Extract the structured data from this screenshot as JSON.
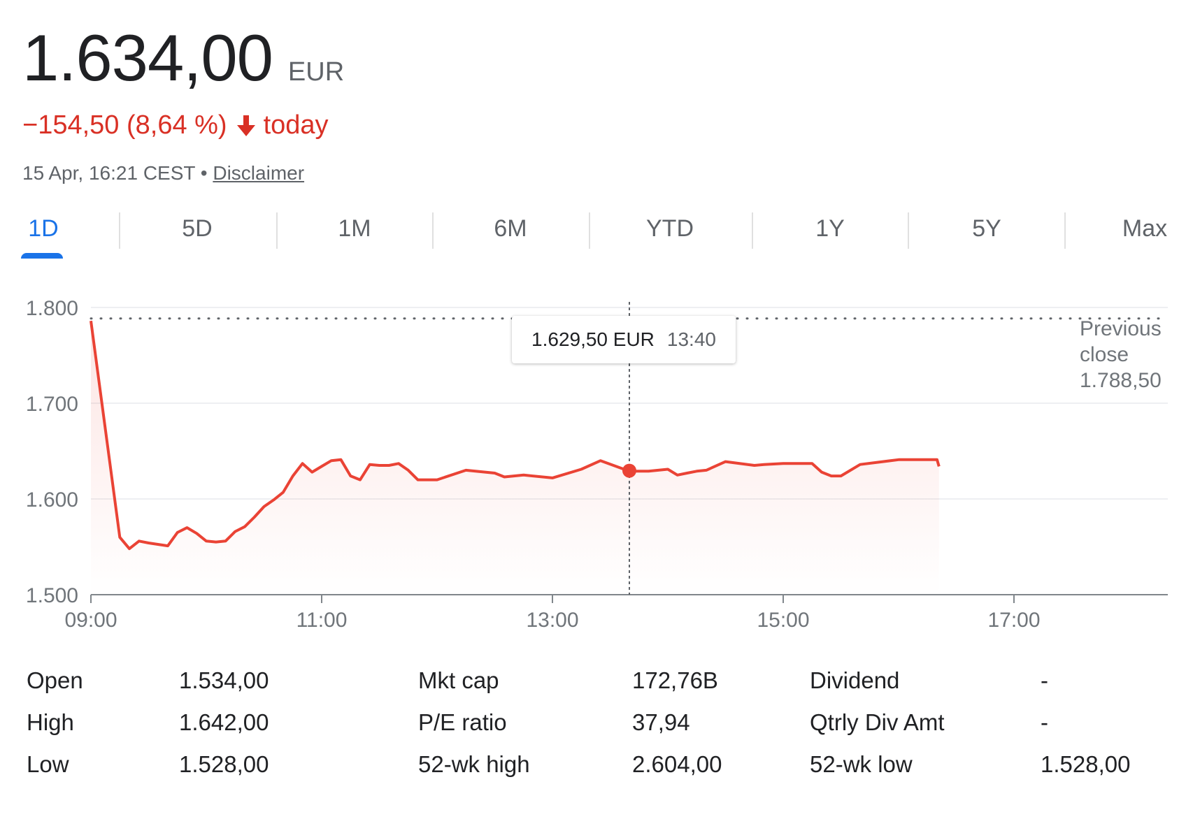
{
  "quote": {
    "price": "1.634,00",
    "currency": "EUR",
    "change": "−154,50 (8,64 %)",
    "change_period": "today",
    "timestamp": "15 Apr, 16:21 CEST •",
    "disclaimer": "Disclaimer",
    "colors": {
      "negative": "#d93025",
      "accent": "#1a73e8"
    }
  },
  "tabs": [
    {
      "label": "1D",
      "active": true
    },
    {
      "label": "5D",
      "active": false
    },
    {
      "label": "1M",
      "active": false
    },
    {
      "label": "6M",
      "active": false
    },
    {
      "label": "YTD",
      "active": false
    },
    {
      "label": "1Y",
      "active": false
    },
    {
      "label": "5Y",
      "active": false
    },
    {
      "label": "Max",
      "active": false
    }
  ],
  "tooltip": {
    "price": "1.629,50 EUR",
    "time": "13:40"
  },
  "previous_close": {
    "label1": "Previous",
    "label2": "close",
    "value": "1.788,50"
  },
  "chart_data": {
    "type": "line",
    "x_ticks": [
      "09:00",
      "11:00",
      "13:00",
      "15:00",
      "17:00"
    ],
    "y_ticks": [
      "1.500",
      "1.600",
      "1.700",
      "1.800"
    ],
    "xlim": [
      "09:00",
      "18:20"
    ],
    "ylim": [
      1500,
      1800
    ],
    "previous_close": 1788.5,
    "hover": {
      "x": "13:40",
      "y": 1629.5
    },
    "series": [
      {
        "color": "#ea4335",
        "x": [
          "09:00",
          "09:15",
          "09:20",
          "09:25",
          "09:30",
          "09:40",
          "09:45",
          "09:50",
          "09:55",
          "10:00",
          "10:05",
          "10:10",
          "10:15",
          "10:20",
          "10:25",
          "10:30",
          "10:35",
          "10:40",
          "10:45",
          "10:50",
          "10:55",
          "11:00",
          "11:05",
          "11:10",
          "11:15",
          "11:20",
          "11:25",
          "11:30",
          "11:35",
          "11:40",
          "11:45",
          "11:50",
          "12:00",
          "12:15",
          "12:30",
          "12:35",
          "12:45",
          "13:00",
          "13:15",
          "13:25",
          "13:40",
          "13:50",
          "14:00",
          "14:05",
          "14:10",
          "14:15",
          "14:20",
          "14:30",
          "14:45",
          "14:50",
          "15:00",
          "15:10",
          "15:15",
          "15:20",
          "15:25",
          "15:30",
          "15:40",
          "16:00",
          "16:05",
          "16:10",
          "16:20",
          "16:21"
        ],
        "y": [
          1786,
          1560,
          1548,
          1556,
          1554,
          1551,
          1565,
          1570,
          1564,
          1556,
          1555,
          1556,
          1566,
          1571,
          1581,
          1592,
          1599,
          1607,
          1624,
          1637,
          1628,
          1634,
          1640,
          1641,
          1624,
          1620,
          1636,
          1635,
          1635,
          1637,
          1630,
          1620,
          1620,
          1630,
          1627,
          1623,
          1625,
          1622,
          1631,
          1640,
          1629,
          1629,
          1631,
          1625,
          1627,
          1629,
          1630,
          1639,
          1635,
          1636,
          1637,
          1637,
          1637,
          1628,
          1624,
          1624,
          1636,
          1641,
          1641,
          1641,
          1641,
          1634
        ]
      }
    ]
  },
  "stats": [
    {
      "label": "Open",
      "value": "1.534,00"
    },
    {
      "label": "High",
      "value": "1.642,00"
    },
    {
      "label": "Low",
      "value": "1.528,00"
    },
    {
      "label": "Mkt cap",
      "value": "172,76B"
    },
    {
      "label": "P/E ratio",
      "value": "37,94"
    },
    {
      "label": "52-wk high",
      "value": "2.604,00"
    },
    {
      "label": "Dividend",
      "value": "-"
    },
    {
      "label": "Qtrly Div Amt",
      "value": "-"
    },
    {
      "label": "52-wk low",
      "value": "1.528,00"
    }
  ]
}
